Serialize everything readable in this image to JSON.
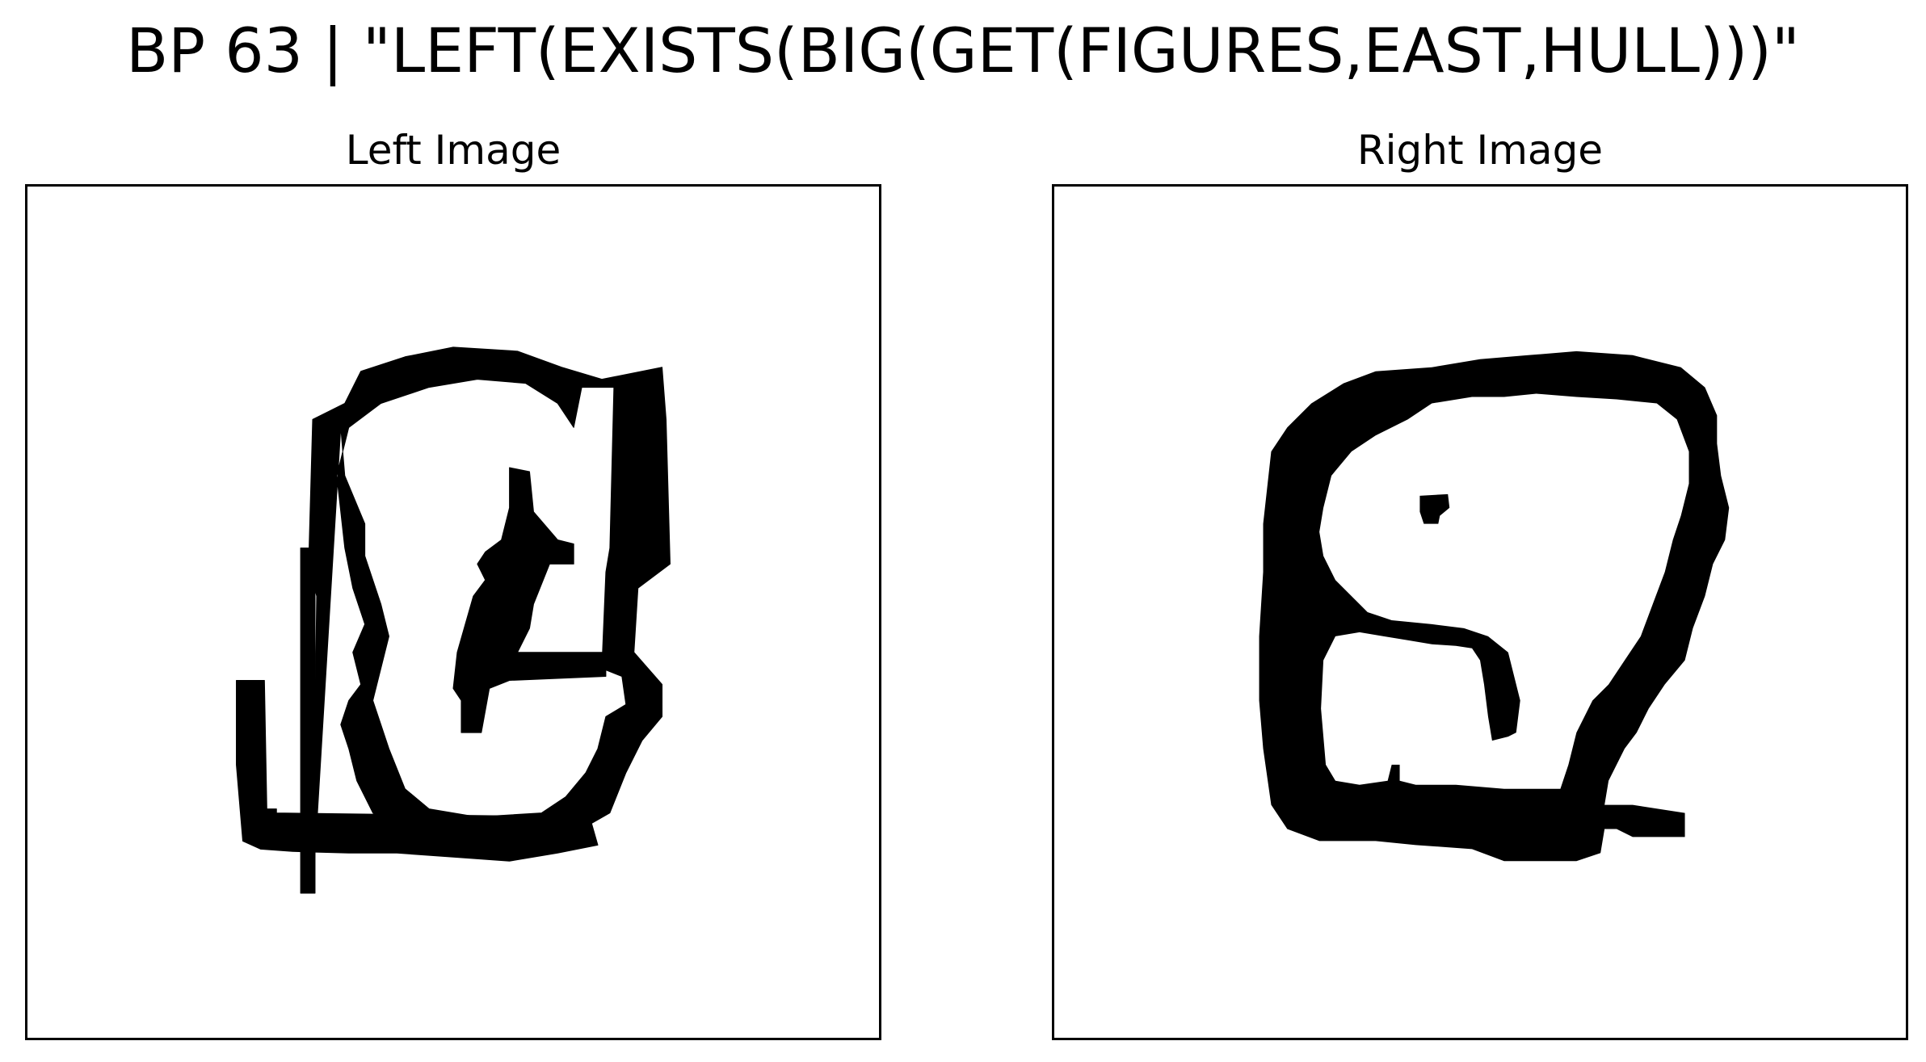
{
  "title": "BP 63 | \"LEFT(EXISTS(BIG(GET(FIGURES,EAST,HULL)))\"",
  "panels": {
    "left": {
      "label": "Left Image"
    },
    "right": {
      "label": "Right Image"
    }
  },
  "colors": {
    "ink": "#000000",
    "background": "#ffffff",
    "frame": "#000000"
  }
}
